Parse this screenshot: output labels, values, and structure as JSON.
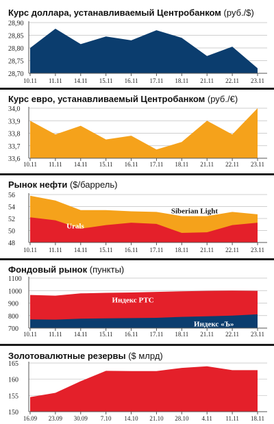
{
  "colors": {
    "navy": "#0b3d6e",
    "orange": "#f5a21b",
    "red": "#e4202a",
    "grid": "#bfbfbf",
    "divider": "#1a1a1a"
  },
  "chart_data": [
    {
      "type": "area",
      "title_bold": "Курс доллара, устанавливаемый Центробанком",
      "title_unit": "(руб./$)",
      "categories": [
        "10.11",
        "11.11",
        "14.11",
        "15.11",
        "16.11",
        "17.11",
        "18.11",
        "21.11",
        "22.11",
        "23.11"
      ],
      "ylim": [
        28.7,
        28.9
      ],
      "yticks": [
        "28,90",
        "28,85",
        "28,80",
        "28,75",
        "28,70"
      ],
      "series": [
        {
          "color": "#0b3d6e",
          "values": [
            28.8,
            28.876,
            28.815,
            28.845,
            28.83,
            28.87,
            28.84,
            28.768,
            28.805,
            28.72
          ]
        }
      ]
    },
    {
      "type": "area",
      "title_bold": "Курс евро, устанавливаемый Центробанком",
      "title_unit": "(руб./€)",
      "categories": [
        "10.11",
        "11.11",
        "14.11",
        "15.11",
        "16.11",
        "17.11",
        "18.11",
        "21.11",
        "22.11",
        "23.11"
      ],
      "ylim": [
        33.6,
        34.0
      ],
      "yticks": [
        "34,0",
        "33,9",
        "33,8",
        "33,7",
        "33,6"
      ],
      "series": [
        {
          "color": "#f5a21b",
          "values": [
            33.9,
            33.79,
            33.86,
            33.75,
            33.78,
            33.67,
            33.73,
            33.9,
            33.79,
            34.0
          ]
        }
      ]
    },
    {
      "type": "area",
      "title_bold": "Рынок нефти",
      "title_unit": "($/баррель)",
      "categories": [
        "10.11",
        "11.11",
        "14.11",
        "15.11",
        "16.11",
        "17.11",
        "18.11",
        "21.11",
        "22.11",
        "23.11"
      ],
      "ylim": [
        48,
        56
      ],
      "yticks": [
        "56",
        "54",
        "52",
        "50",
        "48"
      ],
      "series": [
        {
          "name": "Siberian Light",
          "color": "#f5a21b",
          "values": [
            55.8,
            55.0,
            53.4,
            53.4,
            53.2,
            53.1,
            52.4,
            52.4,
            53.1,
            52.7
          ]
        },
        {
          "name": "Urals",
          "color": "#e4202a",
          "values": [
            52.2,
            51.7,
            50.3,
            50.9,
            51.3,
            51.1,
            49.6,
            49.7,
            50.9,
            51.3
          ]
        }
      ]
    },
    {
      "type": "area",
      "title_bold": "Фондовый рынок",
      "title_unit": "(пункты)",
      "categories": [
        "10.11",
        "11.11",
        "14.11",
        "15.11",
        "16.11",
        "17.11",
        "18.11",
        "21.11",
        "22.11",
        "23.11"
      ],
      "ylim": [
        700,
        1100
      ],
      "yticks": [
        "1100",
        "1000",
        "900",
        "800",
        "700"
      ],
      "series": [
        {
          "name": "Индекс РТС",
          "color": "#e4202a",
          "values": [
            965,
            960,
            978,
            982,
            985,
            990,
            995,
            998,
            1000,
            998
          ]
        },
        {
          "name": "Индекс «Ъ»",
          "color": "#0b3d6e",
          "values": [
            770,
            768,
            775,
            778,
            780,
            782,
            790,
            795,
            800,
            810
          ]
        }
      ]
    },
    {
      "type": "area",
      "title_bold": "Золотовалютные резервы",
      "title_unit": "($ млрд)",
      "categories": [
        "16.09",
        "23.09",
        "30.09",
        "7.10",
        "14.10",
        "21.10",
        "28.10",
        "4.11",
        "11.11",
        "18.11"
      ],
      "ylim": [
        150,
        165
      ],
      "yticks": [
        "165",
        "160",
        "155",
        "150"
      ],
      "series": [
        {
          "color": "#e4202a",
          "values": [
            154.5,
            155.8,
            159.4,
            162.6,
            162.5,
            162.5,
            163.5,
            164.0,
            162.8,
            162.8
          ]
        }
      ]
    }
  ]
}
